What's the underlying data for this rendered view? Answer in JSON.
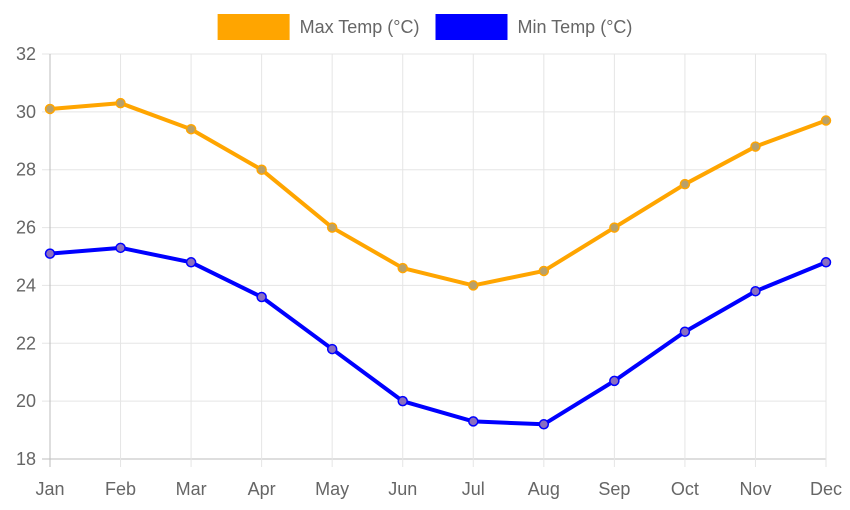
{
  "chart_data": {
    "type": "line",
    "title": "",
    "xlabel": "",
    "ylabel": "",
    "categories": [
      "Jan",
      "Feb",
      "Mar",
      "Apr",
      "May",
      "Jun",
      "Jul",
      "Aug",
      "Sep",
      "Oct",
      "Nov",
      "Dec"
    ],
    "ylim": [
      18,
      32
    ],
    "yticks": [
      18,
      20,
      22,
      24,
      26,
      28,
      30,
      32
    ],
    "grid": true,
    "legend_position": "top-center",
    "series": [
      {
        "name": "Max Temp (°C)",
        "color": "#FFA500",
        "point_color": "#B8A06A",
        "values": [
          30.1,
          30.3,
          29.4,
          28.0,
          26.0,
          24.6,
          24.0,
          24.5,
          26.0,
          27.5,
          28.8,
          29.7
        ]
      },
      {
        "name": "Min Temp (°C)",
        "color": "#0000FF",
        "point_color": "#8A6FC0",
        "values": [
          25.1,
          25.3,
          24.8,
          23.6,
          21.8,
          20.0,
          19.3,
          19.2,
          20.7,
          22.4,
          23.8,
          24.8
        ]
      }
    ]
  }
}
